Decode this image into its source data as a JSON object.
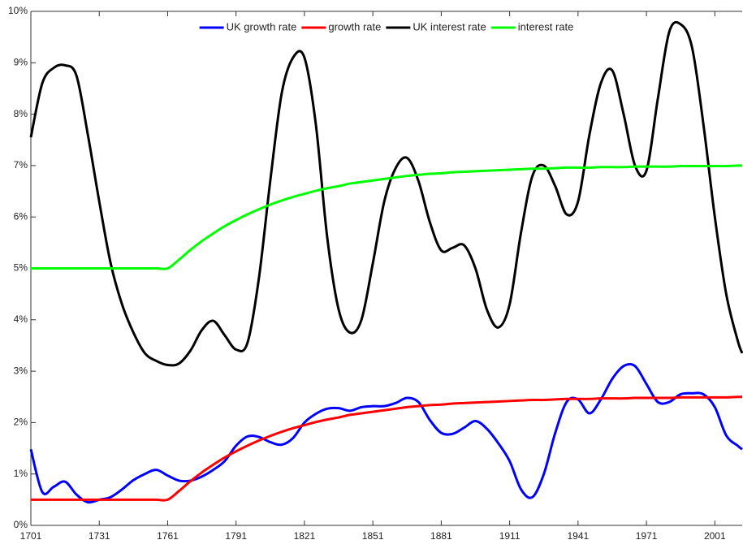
{
  "chart_data": {
    "type": "line",
    "x": [
      1701,
      1706,
      1711,
      1716,
      1721,
      1726,
      1731,
      1736,
      1741,
      1746,
      1751,
      1756,
      1761,
      1766,
      1771,
      1776,
      1781,
      1786,
      1791,
      1796,
      1801,
      1806,
      1811,
      1816,
      1821,
      1826,
      1831,
      1836,
      1841,
      1846,
      1851,
      1856,
      1861,
      1866,
      1871,
      1876,
      1881,
      1886,
      1891,
      1896,
      1901,
      1906,
      1911,
      1916,
      1921,
      1926,
      1931,
      1936,
      1941,
      1946,
      1951,
      1956,
      1961,
      1966,
      1971,
      1976,
      1981,
      1986,
      1991,
      1996,
      2001,
      2006,
      2011,
      2013
    ],
    "series": [
      {
        "name": "UK growth rate",
        "color": "#0000ff",
        "values": [
          1.48,
          0.65,
          0.75,
          0.85,
          0.6,
          0.45,
          0.5,
          0.55,
          0.7,
          0.88,
          1.0,
          1.08,
          0.97,
          0.87,
          0.87,
          0.95,
          1.08,
          1.25,
          1.55,
          1.73,
          1.72,
          1.62,
          1.57,
          1.7,
          2.0,
          2.17,
          2.27,
          2.28,
          2.23,
          2.3,
          2.32,
          2.32,
          2.38,
          2.48,
          2.4,
          2.05,
          1.8,
          1.78,
          1.9,
          2.03,
          1.88,
          1.6,
          1.25,
          0.7,
          0.55,
          1.0,
          1.8,
          2.4,
          2.45,
          2.18,
          2.45,
          2.85,
          3.1,
          3.1,
          2.75,
          2.4,
          2.4,
          2.55,
          2.57,
          2.55,
          2.3,
          1.75,
          1.55,
          1.48
        ]
      },
      {
        "name": "growth rate",
        "color": "#ff0000",
        "values": [
          0.5,
          0.5,
          0.5,
          0.5,
          0.5,
          0.5,
          0.5,
          0.5,
          0.5,
          0.5,
          0.5,
          0.5,
          0.5,
          0.67,
          0.86,
          1.03,
          1.18,
          1.32,
          1.44,
          1.55,
          1.65,
          1.74,
          1.82,
          1.89,
          1.95,
          2.01,
          2.06,
          2.1,
          2.15,
          2.18,
          2.21,
          2.24,
          2.27,
          2.3,
          2.32,
          2.34,
          2.35,
          2.37,
          2.38,
          2.39,
          2.4,
          2.41,
          2.42,
          2.43,
          2.44,
          2.44,
          2.45,
          2.46,
          2.46,
          2.46,
          2.47,
          2.47,
          2.47,
          2.48,
          2.48,
          2.48,
          2.48,
          2.49,
          2.49,
          2.49,
          2.49,
          2.49,
          2.5,
          2.5
        ]
      },
      {
        "name": "UK interest rate",
        "color": "#000000",
        "values": [
          7.55,
          8.6,
          8.9,
          8.95,
          8.75,
          7.6,
          6.3,
          5.1,
          4.3,
          3.75,
          3.35,
          3.2,
          3.12,
          3.15,
          3.4,
          3.8,
          3.98,
          3.7,
          3.42,
          3.55,
          4.8,
          6.7,
          8.4,
          9.1,
          9.1,
          7.8,
          5.6,
          4.2,
          3.75,
          4.0,
          5.1,
          6.3,
          6.95,
          7.15,
          6.7,
          5.9,
          5.35,
          5.4,
          5.45,
          5.0,
          4.2,
          3.85,
          4.3,
          5.7,
          6.8,
          7.0,
          6.6,
          6.05,
          6.3,
          7.6,
          8.6,
          8.85,
          8.0,
          7.0,
          6.9,
          8.3,
          9.6,
          9.75,
          9.3,
          7.8,
          6.0,
          4.5,
          3.6,
          3.35
        ]
      },
      {
        "name": "interest rate",
        "color": "#00ff00",
        "values": [
          5.0,
          5.0,
          5.0,
          5.0,
          5.0,
          5.0,
          5.0,
          5.0,
          5.0,
          5.0,
          5.0,
          5.0,
          5.0,
          5.17,
          5.36,
          5.53,
          5.68,
          5.82,
          5.94,
          6.05,
          6.15,
          6.24,
          6.32,
          6.39,
          6.45,
          6.51,
          6.56,
          6.6,
          6.65,
          6.68,
          6.71,
          6.74,
          6.77,
          6.8,
          6.82,
          6.84,
          6.85,
          6.87,
          6.88,
          6.89,
          6.9,
          6.91,
          6.92,
          6.93,
          6.94,
          6.94,
          6.95,
          6.96,
          6.96,
          6.96,
          6.97,
          6.97,
          6.97,
          6.98,
          6.98,
          6.98,
          6.98,
          6.99,
          6.99,
          6.99,
          6.99,
          6.99,
          7.0,
          7.0
        ]
      }
    ],
    "xlim": [
      1701,
      2013
    ],
    "xticks": [
      1701,
      1731,
      1761,
      1791,
      1821,
      1851,
      1881,
      1911,
      1941,
      1971,
      2001
    ],
    "ylim": [
      0,
      10
    ],
    "yticks": [
      {
        "value": 0,
        "label": "0%"
      },
      {
        "value": 1,
        "label": "1%"
      },
      {
        "value": 2,
        "label": "2%"
      },
      {
        "value": 3,
        "label": "3%"
      },
      {
        "value": 4,
        "label": "4%"
      },
      {
        "value": 5,
        "label": "5%"
      },
      {
        "value": 6,
        "label": "6%"
      },
      {
        "value": 7,
        "label": "7%"
      },
      {
        "value": 8,
        "label": "8%"
      },
      {
        "value": 9,
        "label": "9%"
      },
      {
        "value": 10,
        "label": "10%"
      }
    ],
    "grid": false,
    "legend": "upper center"
  }
}
